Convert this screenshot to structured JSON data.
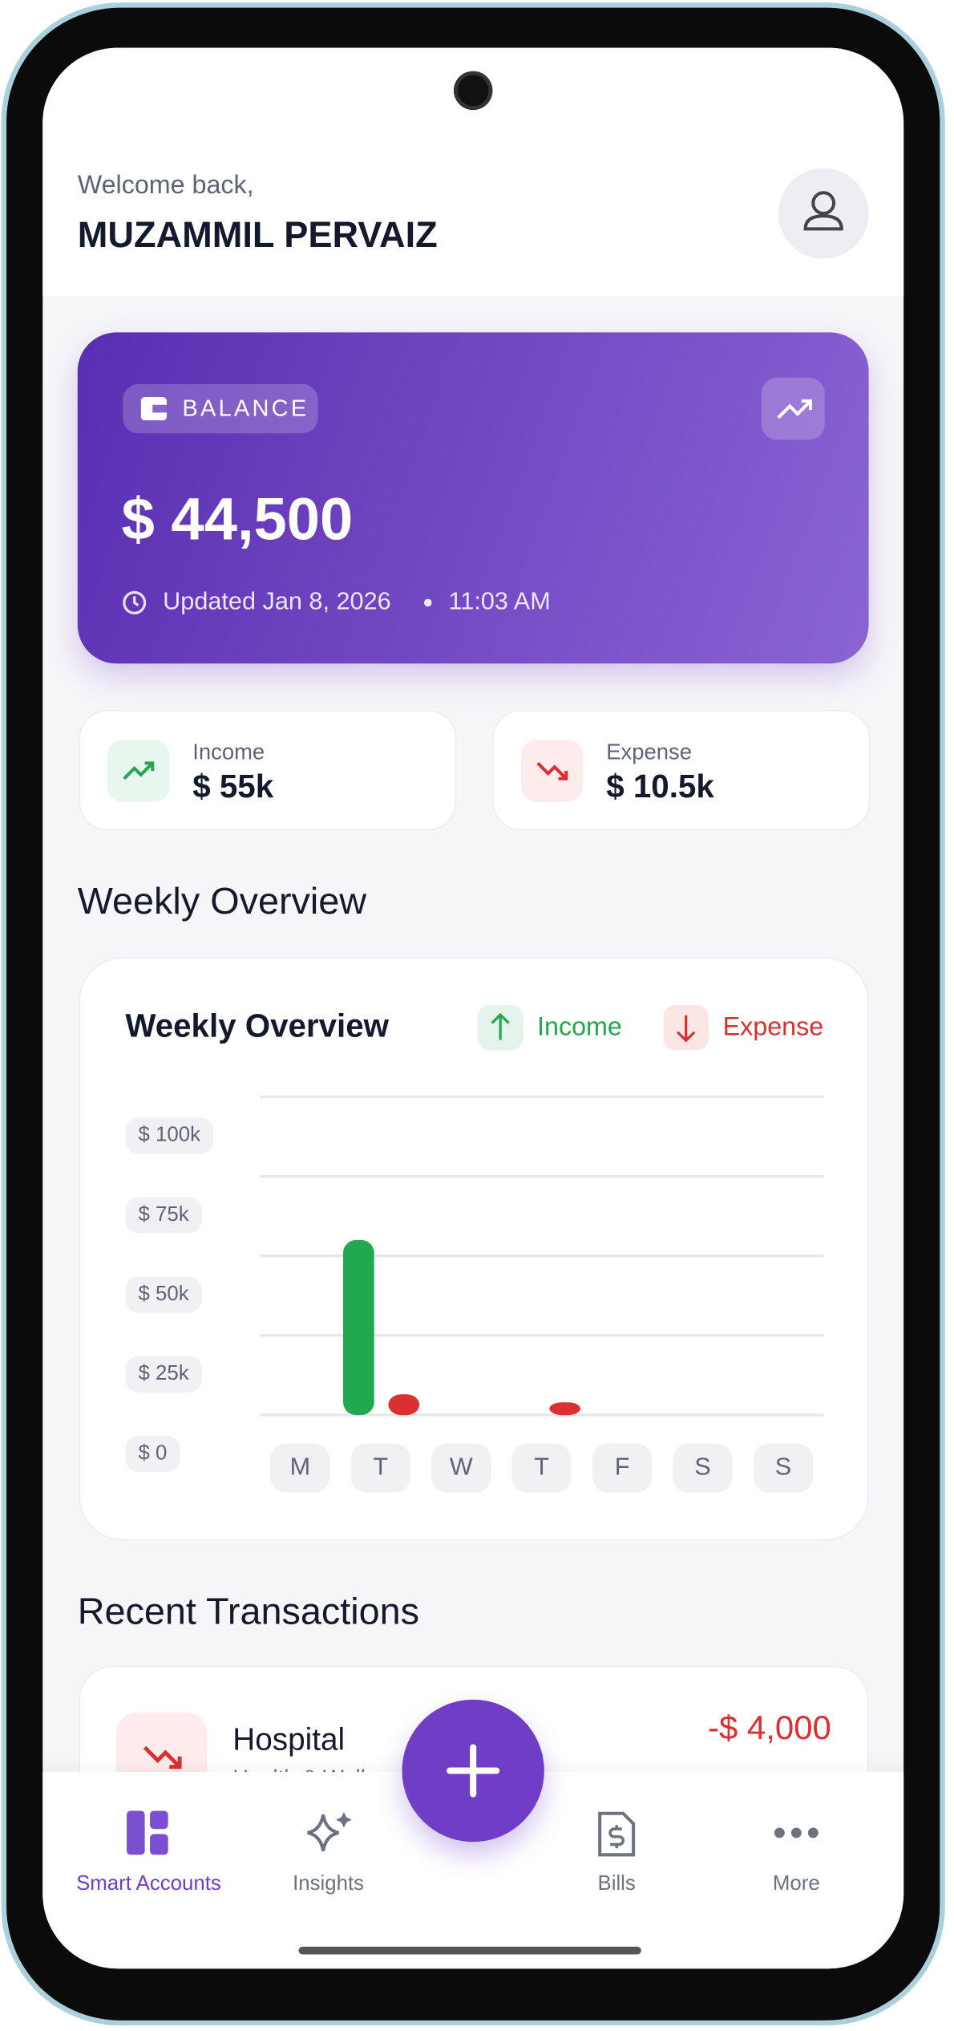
{
  "header": {
    "greeting": "Welcome back,",
    "name": "MUZAMMIL PERVAIZ"
  },
  "balance": {
    "label": "BALANCE",
    "amount": "$ 44,500",
    "updated": "Updated Jan 8, 2026",
    "time": "11:03 AM"
  },
  "summary": [
    {
      "label": "Income",
      "amount": "$ 55k"
    },
    {
      "label": "Expense",
      "amount": "$ 10.5k"
    }
  ],
  "sections": {
    "weekly": "Weekly Overview",
    "recent": "Recent Transactions"
  },
  "chart_data": {
    "type": "bar",
    "title": "Weekly Overview",
    "categories": [
      "M",
      "T",
      "W",
      "T",
      "F",
      "S",
      "S"
    ],
    "series": [
      {
        "name": "Income",
        "color": "#22a84f",
        "values": [
          0,
          55000,
          0,
          0,
          0,
          0,
          0
        ]
      },
      {
        "name": "Expense",
        "color": "#dc2f2f",
        "values": [
          0,
          6500,
          0,
          4000,
          0,
          0,
          0
        ]
      }
    ],
    "ylim": [
      0,
      100000
    ],
    "yticks": [
      {
        "value": 0,
        "label": "$ 0"
      },
      {
        "value": 25000,
        "label": "$ 25k"
      },
      {
        "value": 50000,
        "label": "$ 50k"
      },
      {
        "value": 75000,
        "label": "$ 75k"
      },
      {
        "value": 100000,
        "label": "$ 100k"
      }
    ],
    "grid": true
  },
  "transactions": [
    {
      "title": "Hospital",
      "category": "Health & Wellness",
      "amount": "-$ 4,000"
    }
  ],
  "nav": [
    {
      "label": "Smart Accounts"
    },
    {
      "label": "Insights"
    },
    {
      "label": "Bills"
    },
    {
      "label": "More"
    }
  ]
}
